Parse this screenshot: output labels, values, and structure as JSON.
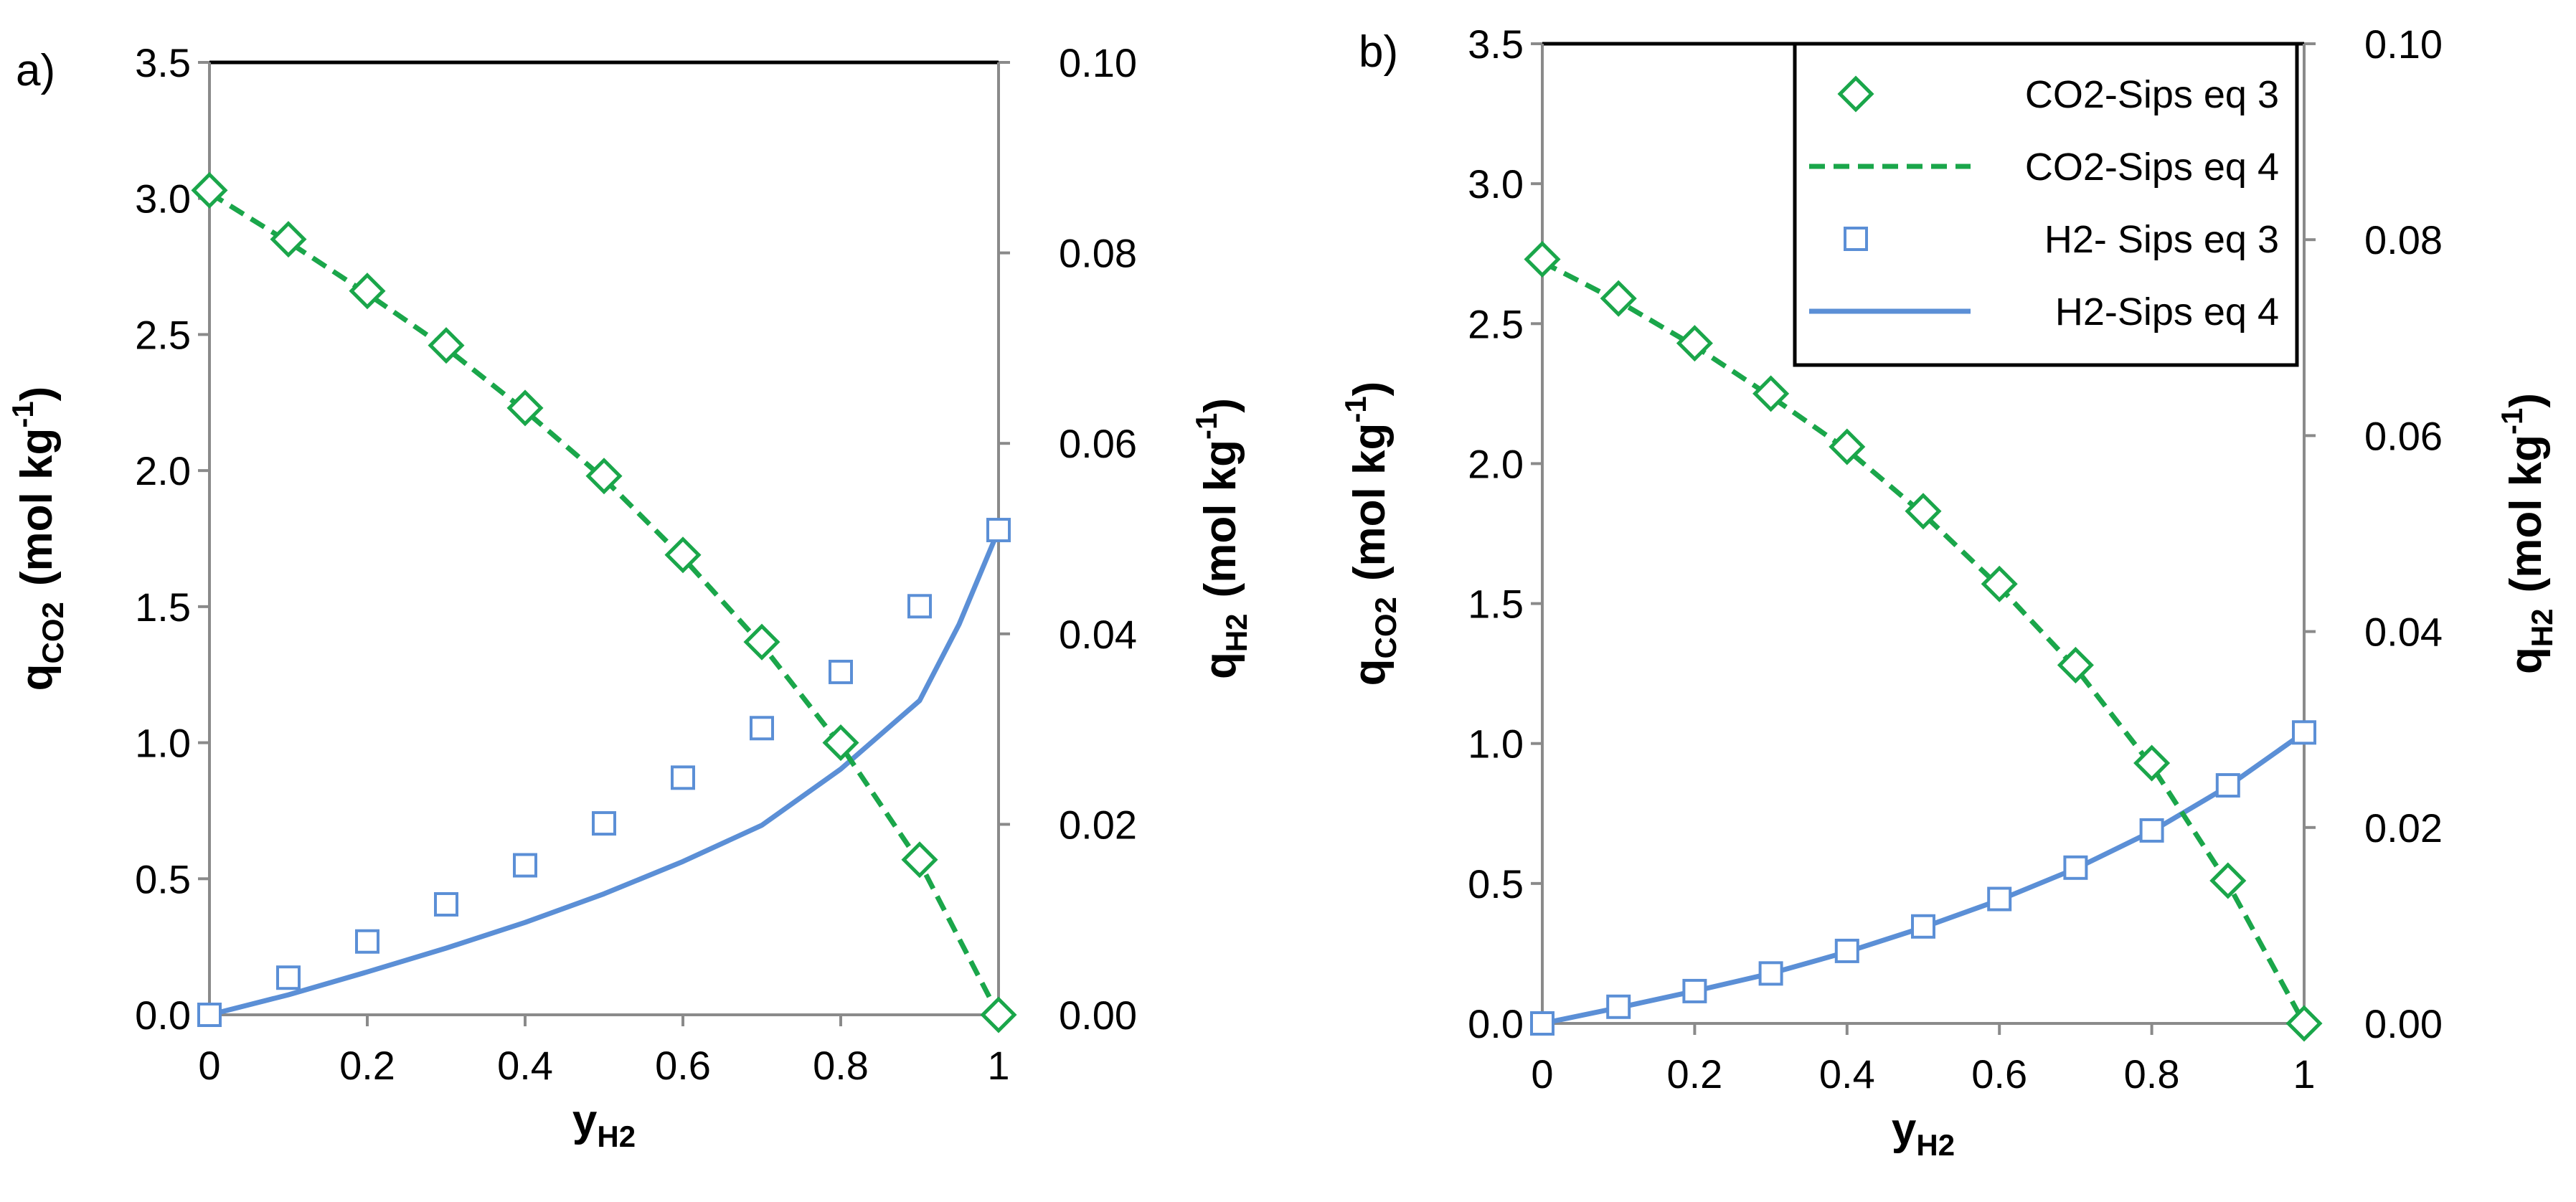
{
  "chart_data": [
    {
      "panel_label": "a)",
      "type": "scatter+line",
      "xlabel": {
        "main": "y",
        "sub": "H2"
      },
      "ylabel_left": {
        "main": "q",
        "sub": "CO2",
        "rest": "(mol kg",
        "sup": "-1",
        "close": ")"
      },
      "ylabel_right": {
        "main": "q",
        "sub": "H2",
        "rest": "(mol kg",
        "sup": "-1",
        "close": ")"
      },
      "xlim": [
        0,
        1
      ],
      "ylim_left": [
        0,
        3.5
      ],
      "ylim_right": [
        0,
        0.1
      ],
      "x_ticks": [
        "0",
        "0.2",
        "0.4",
        "0.6",
        "0.8",
        "1"
      ],
      "y_left_ticks": [
        "0.0",
        "0.5",
        "1.0",
        "1.5",
        "2.0",
        "2.5",
        "3.0",
        "3.5"
      ],
      "y_right_ticks": [
        "0.00",
        "0.02",
        "0.04",
        "0.06",
        "0.08",
        "0.10"
      ],
      "series": [
        {
          "name": "CO2-Sips eq 3",
          "axis": "left",
          "style": "diamond",
          "color": "#1aa64a",
          "x": [
            0,
            0.1,
            0.2,
            0.3,
            0.4,
            0.5,
            0.6,
            0.7,
            0.8,
            0.9,
            1.0
          ],
          "y": [
            3.03,
            2.85,
            2.66,
            2.46,
            2.23,
            1.98,
            1.69,
            1.37,
            1.0,
            0.57,
            0.0
          ]
        },
        {
          "name": "CO2-Sips eq 4",
          "axis": "left",
          "style": "dashed",
          "color": "#1aa64a",
          "x": [
            0,
            0.1,
            0.2,
            0.3,
            0.4,
            0.5,
            0.6,
            0.7,
            0.8,
            0.9,
            1.0
          ],
          "y": [
            3.02,
            2.84,
            2.65,
            2.45,
            2.22,
            1.97,
            1.68,
            1.36,
            0.99,
            0.56,
            0.0
          ]
        },
        {
          "name": "H2- Sips eq 3",
          "axis": "right",
          "style": "square",
          "color": "#5b8fd6",
          "x": [
            0,
            0.1,
            0.2,
            0.3,
            0.4,
            0.5,
            0.6,
            0.7,
            0.8,
            0.9,
            1.0
          ],
          "y": [
            0.0,
            0.0039,
            0.0077,
            0.0116,
            0.0157,
            0.0201,
            0.0249,
            0.0301,
            0.036,
            0.0429,
            0.0509
          ]
        },
        {
          "name": "H2-Sips eq 4",
          "axis": "right",
          "style": "solid",
          "color": "#5b8fd6",
          "x": [
            0,
            0.1,
            0.2,
            0.3,
            0.4,
            0.5,
            0.6,
            0.7,
            0.8,
            0.9,
            0.95,
            1.0
          ],
          "y": [
            0.0,
            0.0021,
            0.0045,
            0.007,
            0.0097,
            0.0127,
            0.0161,
            0.0199,
            0.0258,
            0.033,
            0.041,
            0.0509
          ]
        }
      ]
    },
    {
      "panel_label": "b)",
      "type": "scatter+line",
      "xlabel": {
        "main": "y",
        "sub": "H2"
      },
      "ylabel_left": {
        "main": "q",
        "sub": "CO2",
        "rest": "(mol kg",
        "sup": "-1",
        "close": ")"
      },
      "ylabel_right": {
        "main": "q",
        "sub": "H2",
        "rest": "(mol kg",
        "sup": "-1",
        "close": ")"
      },
      "xlim": [
        0,
        1
      ],
      "ylim_left": [
        0,
        3.5
      ],
      "ylim_right": [
        0,
        0.1
      ],
      "x_ticks": [
        "0",
        "0.2",
        "0.4",
        "0.6",
        "0.8",
        "1"
      ],
      "y_left_ticks": [
        "0.0",
        "0.5",
        "1.0",
        "1.5",
        "2.0",
        "2.5",
        "3.0",
        "3.5"
      ],
      "y_right_ticks": [
        "0.00",
        "0.02",
        "0.04",
        "0.06",
        "0.08",
        "0.10"
      ],
      "legend": {
        "location": "top-right",
        "entries": [
          "CO2-Sips eq 3",
          "CO2-Sips eq 4",
          "H2- Sips eq 3",
          "H2-Sips eq 4"
        ]
      },
      "series": [
        {
          "name": "CO2-Sips eq 3",
          "axis": "left",
          "style": "diamond",
          "color": "#1aa64a",
          "x": [
            0,
            0.1,
            0.2,
            0.3,
            0.4,
            0.5,
            0.6,
            0.7,
            0.8,
            0.9,
            1.0
          ],
          "y": [
            2.73,
            2.59,
            2.43,
            2.25,
            2.06,
            1.83,
            1.57,
            1.28,
            0.93,
            0.51,
            0.0
          ]
        },
        {
          "name": "CO2-Sips eq 4",
          "axis": "left",
          "style": "dashed",
          "color": "#1aa64a",
          "x": [
            0,
            0.1,
            0.2,
            0.3,
            0.4,
            0.5,
            0.6,
            0.7,
            0.8,
            0.9,
            1.0
          ],
          "y": [
            2.72,
            2.58,
            2.42,
            2.24,
            2.05,
            1.82,
            1.56,
            1.27,
            0.92,
            0.5,
            0.0
          ]
        },
        {
          "name": "H2- Sips eq 3",
          "axis": "right",
          "style": "square",
          "color": "#5b8fd6",
          "x": [
            0,
            0.1,
            0.2,
            0.3,
            0.4,
            0.5,
            0.6,
            0.7,
            0.8,
            0.9,
            1.0
          ],
          "y": [
            0.0,
            0.0017,
            0.0033,
            0.0051,
            0.0074,
            0.0099,
            0.0127,
            0.0159,
            0.0197,
            0.0243,
            0.0297
          ]
        },
        {
          "name": "H2-Sips eq 4",
          "axis": "right",
          "style": "solid",
          "color": "#5b8fd6",
          "x": [
            0,
            0.1,
            0.2,
            0.3,
            0.4,
            0.5,
            0.6,
            0.7,
            0.8,
            0.9,
            1.0
          ],
          "y": [
            0.0,
            0.0016,
            0.0033,
            0.0051,
            0.0073,
            0.0098,
            0.0126,
            0.0158,
            0.0196,
            0.0242,
            0.0297
          ]
        }
      ]
    }
  ]
}
